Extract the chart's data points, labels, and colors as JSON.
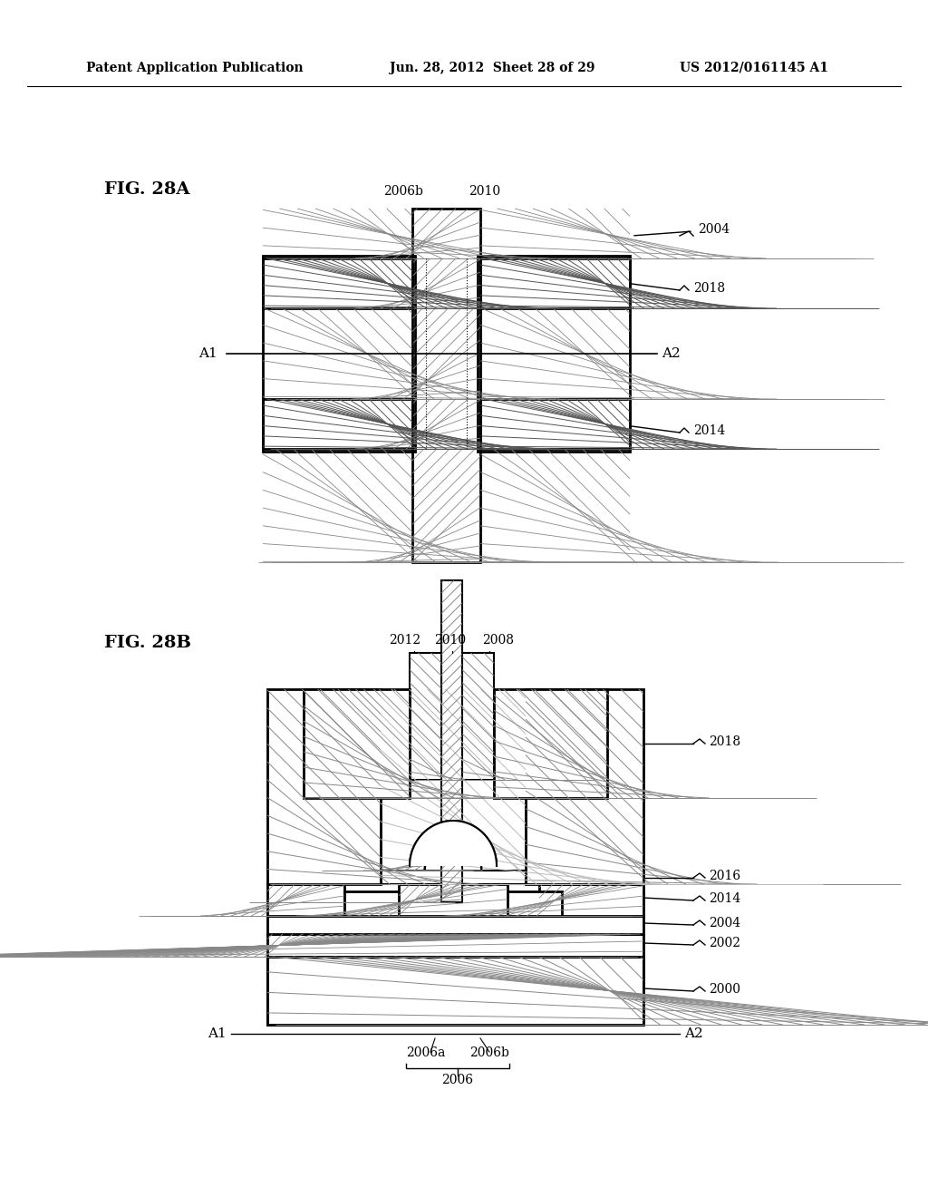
{
  "header_left": "Patent Application Publication",
  "header_mid": "Jun. 28, 2012  Sheet 28 of 29",
  "header_right": "US 2012/0161145 A1",
  "fig_a_label": "FIG. 28A",
  "fig_b_label": "FIG. 28B",
  "background_color": "#ffffff",
  "line_color": "#000000",
  "hatch_color": "#000000"
}
